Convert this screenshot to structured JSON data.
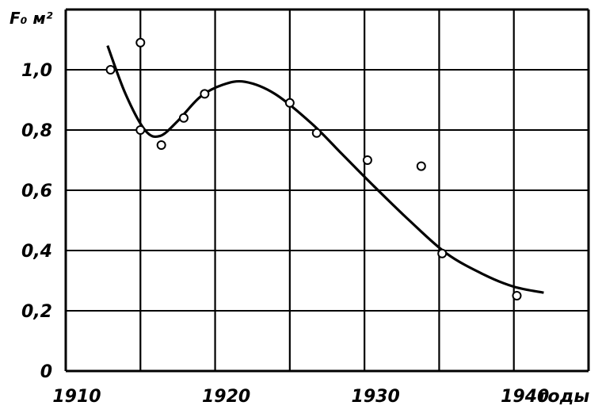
{
  "chart_data": {
    "type": "scatter",
    "title": "",
    "ylabel": "F₀ м²",
    "xlabel": "годы",
    "xlim": [
      1910,
      1945
    ],
    "ylim": [
      0,
      1.2
    ],
    "grid": true,
    "x_ticks": [
      1910,
      1920,
      1930,
      1940
    ],
    "x_tick_labels": [
      "1910",
      "1920",
      "1930",
      "1940"
    ],
    "y_ticks": [
      0,
      0.2,
      0.4,
      0.6,
      0.8,
      1.0
    ],
    "y_tick_labels": [
      "0",
      "0,2",
      "0,4",
      "0,6",
      "0,8",
      "1,0"
    ],
    "points": [
      {
        "x": 1913.0,
        "y": 1.0
      },
      {
        "x": 1915.0,
        "y": 1.09
      },
      {
        "x": 1915.0,
        "y": 0.8
      },
      {
        "x": 1916.4,
        "y": 0.75
      },
      {
        "x": 1917.9,
        "y": 0.84
      },
      {
        "x": 1919.3,
        "y": 0.92
      },
      {
        "x": 1925.0,
        "y": 0.89
      },
      {
        "x": 1926.8,
        "y": 0.79
      },
      {
        "x": 1930.2,
        "y": 0.7
      },
      {
        "x": 1933.8,
        "y": 0.68
      },
      {
        "x": 1935.2,
        "y": 0.39
      },
      {
        "x": 1940.2,
        "y": 0.25
      }
    ],
    "fit_curve": [
      {
        "x": 1912.8,
        "y": 1.08
      },
      {
        "x": 1914.0,
        "y": 0.92
      },
      {
        "x": 1915.3,
        "y": 0.8
      },
      {
        "x": 1916.3,
        "y": 0.78
      },
      {
        "x": 1917.5,
        "y": 0.83
      },
      {
        "x": 1919.0,
        "y": 0.91
      },
      {
        "x": 1920.5,
        "y": 0.95
      },
      {
        "x": 1922.0,
        "y": 0.96
      },
      {
        "x": 1924.0,
        "y": 0.92
      },
      {
        "x": 1926.5,
        "y": 0.82
      },
      {
        "x": 1928.5,
        "y": 0.72
      },
      {
        "x": 1930.5,
        "y": 0.62
      },
      {
        "x": 1933.0,
        "y": 0.5
      },
      {
        "x": 1935.5,
        "y": 0.39
      },
      {
        "x": 1938.0,
        "y": 0.32
      },
      {
        "x": 1940.0,
        "y": 0.28
      },
      {
        "x": 1942.0,
        "y": 0.26
      }
    ]
  }
}
